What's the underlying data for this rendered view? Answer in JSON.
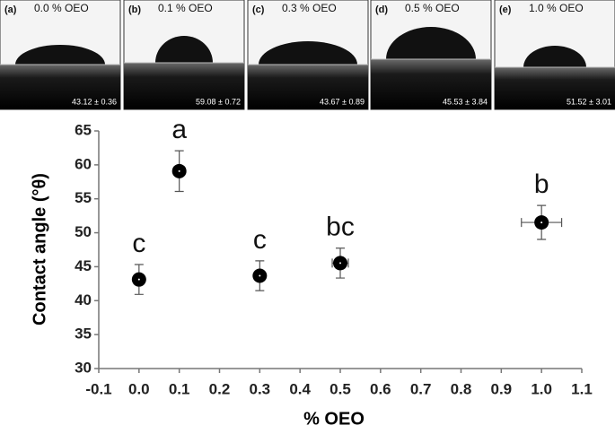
{
  "panels": [
    {
      "label": "(a)",
      "concentration": "0.0 % OEO",
      "angle": "43.12 ± 0.36"
    },
    {
      "label": "(b)",
      "concentration": "0.1 % OEO",
      "angle": "59.08 ± 0.72"
    },
    {
      "label": "(c)",
      "concentration": "0.3 % OEO",
      "angle": "43.67 ± 0.89"
    },
    {
      "label": "(d)",
      "concentration": "0.5 % OEO",
      "angle": "45.53 ± 3.84"
    },
    {
      "label": "(e)",
      "concentration": "1.0 % OEO",
      "angle": "51.52 ± 3.01"
    }
  ],
  "chart_data": {
    "type": "scatter",
    "x_label": "% OEO",
    "y_label": "Contact angle (°θ)",
    "x": [
      0,
      0.1,
      0.3,
      0.5,
      1.0
    ],
    "values": [
      43.12,
      59.08,
      43.67,
      45.53,
      51.52
    ],
    "y_err": [
      2.2,
      3.0,
      2.2,
      2.2,
      2.5
    ],
    "x_err": [
      0,
      0,
      0,
      0.02,
      0.05
    ],
    "annotations": [
      "c",
      "a",
      "c",
      "bc",
      "b"
    ],
    "color": "#000000",
    "xlim": [
      -0.1,
      1.1
    ],
    "xticks": [
      -0.1,
      {
        "value": 0,
        "label": "0.0"
      },
      0.1,
      0.2,
      0.3,
      0.4,
      0.5,
      0.6,
      0.7,
      0.8,
      0.9,
      {
        "value": 1,
        "label": "1.0"
      },
      1.1
    ],
    "ylim": [
      30,
      65
    ],
    "yticks": [
      30,
      35,
      40,
      45,
      50,
      55,
      60,
      65
    ]
  }
}
